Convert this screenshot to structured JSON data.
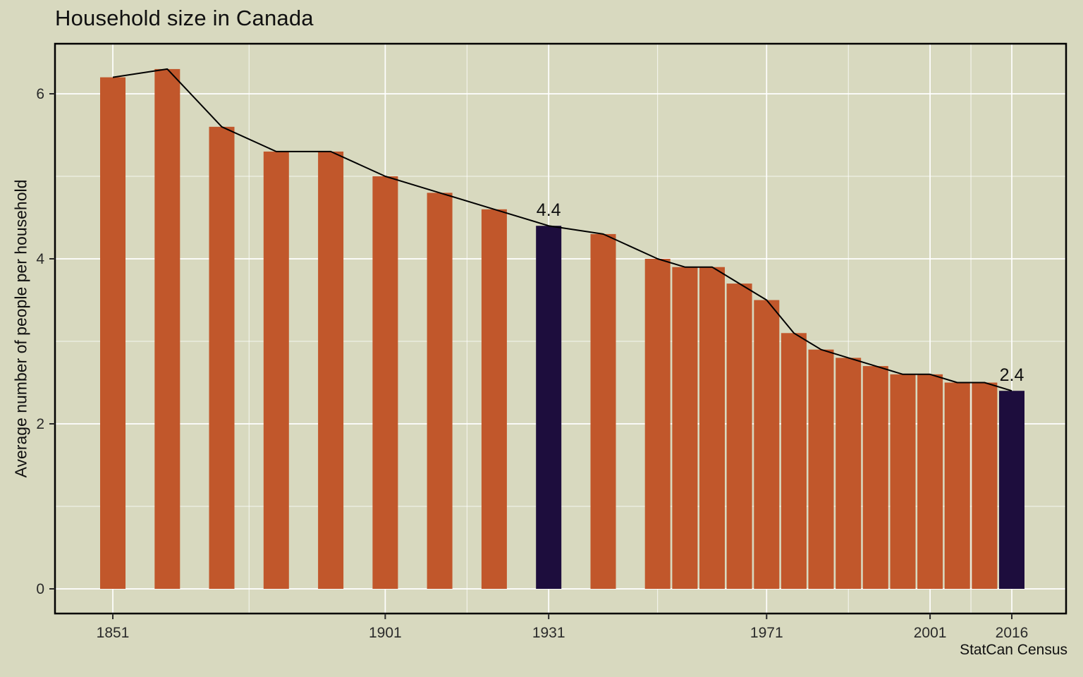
{
  "chart_data": {
    "type": "bar",
    "overlay": "line",
    "title": "Household size in Canada",
    "xlabel": "",
    "ylabel": "Average number of people per household",
    "caption": "StatCan Census",
    "x": [
      1851,
      1861,
      1871,
      1881,
      1891,
      1901,
      1911,
      1921,
      1931,
      1941,
      1951,
      1956,
      1961,
      1966,
      1971,
      1976,
      1981,
      1986,
      1991,
      1996,
      2001,
      2006,
      2011,
      2016
    ],
    "values": [
      6.2,
      6.3,
      5.6,
      5.3,
      5.3,
      5.0,
      4.8,
      4.6,
      4.4,
      4.3,
      4.0,
      3.9,
      3.9,
      3.7,
      3.5,
      3.1,
      2.9,
      2.8,
      2.7,
      2.6,
      2.6,
      2.5,
      2.5,
      2.4
    ],
    "highlighted_x": [
      1931,
      2016
    ],
    "annotations": [
      {
        "x": 1931,
        "y": 4.4,
        "label": "4.4"
      },
      {
        "x": 2016,
        "y": 2.4,
        "label": "2.4"
      }
    ],
    "x_ticks": [
      1851,
      1901,
      1931,
      1971,
      2001,
      2016
    ],
    "y_ticks": [
      0,
      2,
      4,
      6
    ],
    "y_minor_ticks": [
      1,
      3,
      5
    ],
    "ylim": [
      0,
      6.6
    ],
    "xlim": [
      1840,
      2026
    ],
    "grid": "major+minor",
    "legend": "none",
    "colors": {
      "background": "#D8D9BF",
      "bar": "#C1572B",
      "highlight_bar": "#1D0D3D",
      "line": "#000000",
      "grid": "#FFFFFF",
      "panel_border": "#000000",
      "text": "#101010",
      "tick_text": "#2A2A2A"
    }
  }
}
